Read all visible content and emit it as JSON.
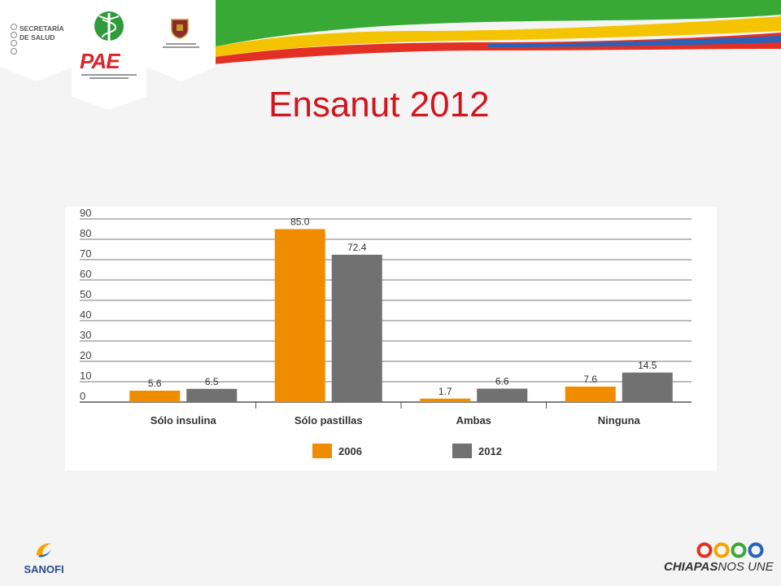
{
  "slide": {
    "title": "Ensanut 2012"
  },
  "logos": {
    "secretaria_line1": "SECRETARÍA",
    "secretaria_line2": "DE SALUD",
    "pae": "PAE",
    "sanofi": "SANOFI",
    "chiapas_bold": "CHIAPAS",
    "chiapas_light": "NOS UNE"
  },
  "colors": {
    "title": "#d2161e",
    "series_2006": "#f08c00",
    "series_2012": "#717171"
  },
  "chart_data": {
    "type": "bar",
    "title": "",
    "xlabel": "",
    "ylabel": "",
    "ylim": [
      0,
      90
    ],
    "yticks": [
      0,
      10,
      20,
      30,
      40,
      50,
      60,
      70,
      80,
      90
    ],
    "grid": true,
    "legend_position": "bottom",
    "categories": [
      "Sólo insulina",
      "Sólo pastillas",
      "Ambas",
      "Ninguna"
    ],
    "series": [
      {
        "name": "2006",
        "color": "#f08c00",
        "values": [
          5.6,
          85.0,
          1.7,
          7.6
        ],
        "labels": [
          "5.6",
          "85.0",
          "1.7",
          "7.6"
        ]
      },
      {
        "name": "2012",
        "color": "#717171",
        "values": [
          6.5,
          72.4,
          6.6,
          14.5
        ],
        "labels": [
          "6.5",
          "72.4",
          "6.6",
          "14.5"
        ]
      }
    ]
  }
}
